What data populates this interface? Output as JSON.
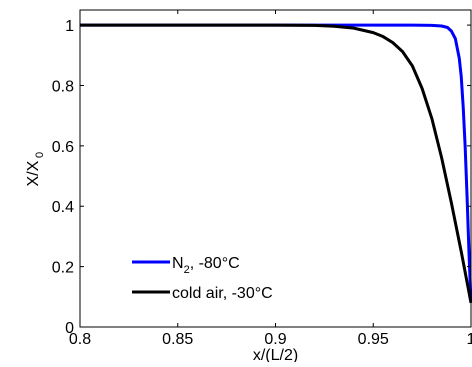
{
  "chart_data": {
    "type": "line",
    "title": "",
    "xlabel": "x/(L/2)",
    "ylabel_main": "X/X",
    "ylabel_sub": "0",
    "xlim": [
      0.8,
      1.0
    ],
    "ylim": [
      0,
      1.05
    ],
    "x_ticks": [
      0.8,
      0.85,
      0.9,
      0.95,
      1.0
    ],
    "x_tick_labels": [
      "0.8",
      "0.85",
      "0.9",
      "0.95",
      "1"
    ],
    "y_ticks": [
      0,
      0.2,
      0.4,
      0.6,
      0.8,
      1.0
    ],
    "y_tick_labels": [
      "0",
      "0.2",
      "0.4",
      "0.6",
      "0.8",
      "1"
    ],
    "grid": false,
    "legend_position": "lower-left",
    "series": [
      {
        "name_main": "N",
        "name_sub": "2",
        "name_rest": ", -80°C",
        "color": "#0000ff",
        "x": [
          0.8,
          0.9,
          0.95,
          0.97,
          0.98,
          0.985,
          0.988,
          0.99,
          0.992,
          0.994,
          0.995,
          0.996,
          0.997,
          0.998,
          0.999,
          1.0
        ],
        "y": [
          1.0,
          1.0,
          1.0,
          1.0,
          0.999,
          0.997,
          0.992,
          0.98,
          0.955,
          0.89,
          0.83,
          0.73,
          0.6,
          0.43,
          0.24,
          0.08
        ]
      },
      {
        "name_main": "cold air, -30°C",
        "name_sub": "",
        "name_rest": "",
        "color": "#000000",
        "x": [
          0.8,
          0.9,
          0.92,
          0.93,
          0.94,
          0.95,
          0.955,
          0.96,
          0.965,
          0.97,
          0.975,
          0.98,
          0.985,
          0.99,
          0.995,
          1.0
        ],
        "y": [
          1.0,
          1.0,
          0.999,
          0.996,
          0.99,
          0.975,
          0.962,
          0.942,
          0.912,
          0.865,
          0.79,
          0.69,
          0.56,
          0.41,
          0.25,
          0.08
        ]
      }
    ]
  }
}
